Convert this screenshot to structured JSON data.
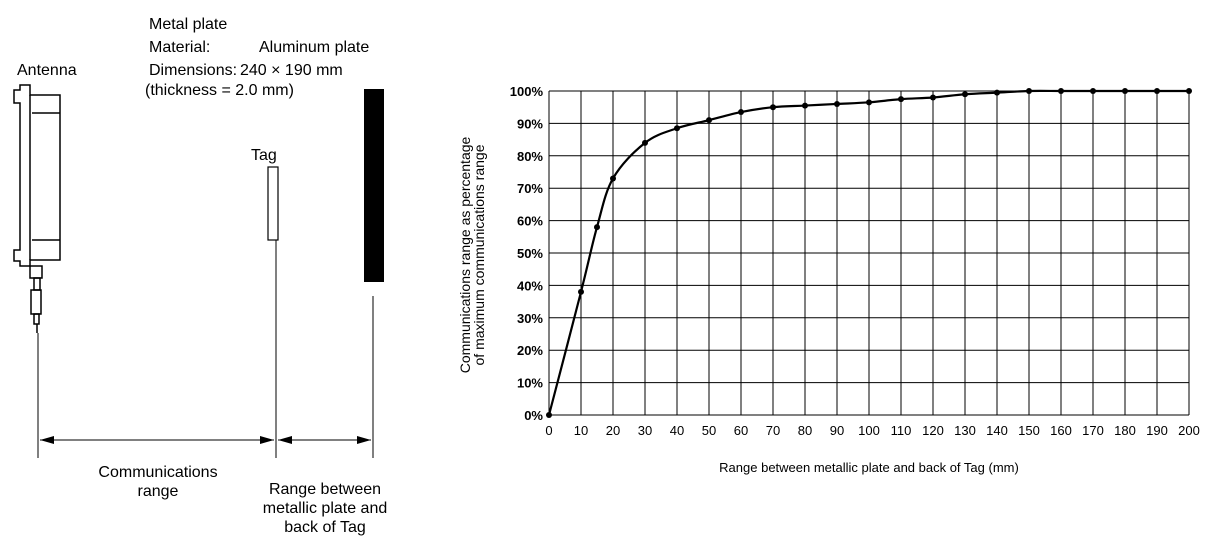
{
  "diagram": {
    "antenna_label": "Antenna",
    "metal_plate_label": "Metal plate",
    "material_key": "Material:",
    "material_value": "Aluminum plate",
    "dimensions_key": "Dimensions:",
    "dimensions_value": "240 × 190 mm",
    "thickness": "(thickness = 2.0 mm)",
    "tag_label": "Tag",
    "comm_range_line1": "Communications",
    "comm_range_line2": "range",
    "range_plate_line1": "Range between",
    "range_plate_line2": "metallic plate and",
    "range_plate_line3": "back of Tag"
  },
  "chart_data": {
    "type": "line",
    "title": "",
    "xlabel": "Range between metallic plate and back of Tag (mm)",
    "ylabel_line1": "Communications range as percentage",
    "ylabel_line2": "of maximum communications range",
    "xlim": [
      0,
      200
    ],
    "ylim": [
      0,
      100
    ],
    "x_ticks": [
      0,
      10,
      20,
      30,
      40,
      50,
      60,
      70,
      80,
      90,
      100,
      110,
      120,
      130,
      140,
      150,
      160,
      170,
      180,
      190,
      200
    ],
    "y_ticks": [
      "0%",
      "10%",
      "20%",
      "30%",
      "40%",
      "50%",
      "60%",
      "70%",
      "80%",
      "90%",
      "100%"
    ],
    "grid": true,
    "series": [
      {
        "x": [
          0,
          10,
          15,
          20,
          30,
          40,
          50,
          60,
          70,
          80,
          90,
          100,
          110,
          120,
          130,
          140,
          150,
          160,
          170,
          180,
          190,
          200
        ],
        "y": [
          0,
          38,
          58,
          73,
          84,
          88.5,
          91,
          93.5,
          95,
          95.5,
          96,
          96.5,
          97.5,
          98,
          99,
          99.5,
          100,
          100,
          100,
          100,
          100,
          100
        ]
      }
    ],
    "line_color": "#000000"
  }
}
